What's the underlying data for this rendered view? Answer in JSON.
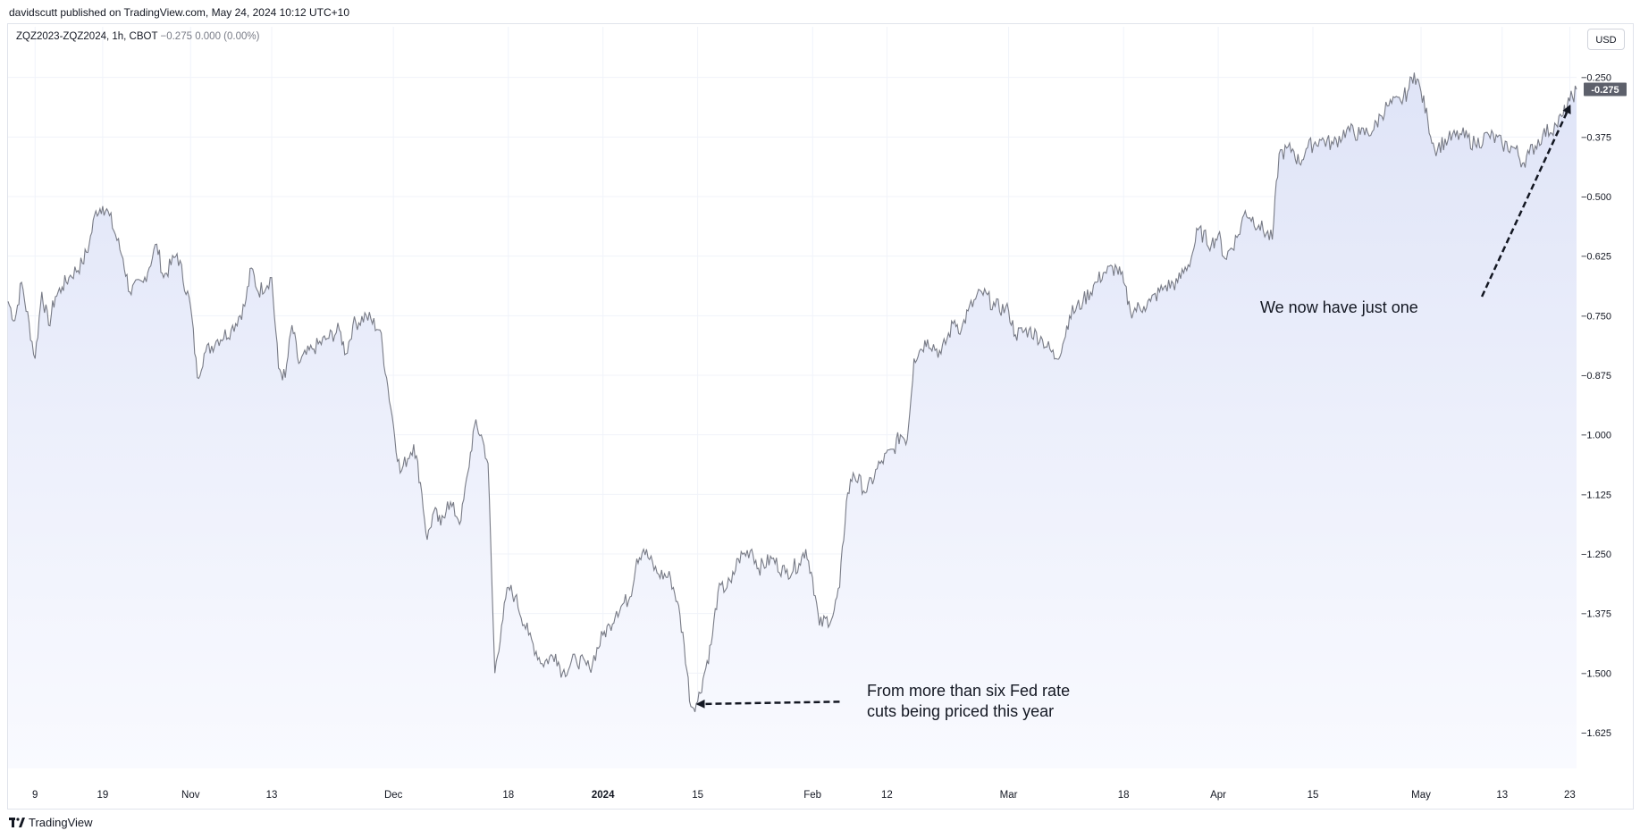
{
  "published_line": "davidscutt published on TradingView.com, May 24, 2024 10:12 UTC+10",
  "legend": {
    "symbol": "ZQZ2023-ZQZ2024, 1h, CBOT",
    "values": "−0.275  0.000 (0.00%)"
  },
  "currency_button": "USD",
  "footer_brand": "TradingView",
  "colors": {
    "line": "#787b86",
    "area_top": "#dfe4f7",
    "area_bottom": "#f9faff",
    "last_price_badge": "#5d606b",
    "grid": "#f0f3fa"
  },
  "chart_data": {
    "type": "area",
    "title": "",
    "xlabel": "",
    "ylabel": "",
    "currency": "USD",
    "last_price_label": "-0.275",
    "ylim": [
      -1.7,
      -0.2
    ],
    "xlim": [
      "2023-10-05",
      "2024-05-24"
    ],
    "y_ticks": [
      "-0.250",
      "-0.375",
      "-0.500",
      "-0.625",
      "-0.750",
      "-0.875",
      "-1.000",
      "-1.125",
      "-1.250",
      "-1.375",
      "-1.500",
      "-1.625"
    ],
    "x_ticks": [
      {
        "label": "9",
        "date": "2023-10-09",
        "bold": false
      },
      {
        "label": "19",
        "date": "2023-10-19",
        "bold": false
      },
      {
        "label": "Nov",
        "date": "2023-11-01",
        "bold": false
      },
      {
        "label": "13",
        "date": "2023-11-13",
        "bold": false
      },
      {
        "label": "Dec",
        "date": "2023-12-01",
        "bold": false
      },
      {
        "label": "18",
        "date": "2023-12-18",
        "bold": false
      },
      {
        "label": "2024",
        "date": "2024-01-01",
        "bold": true
      },
      {
        "label": "15",
        "date": "2024-01-15",
        "bold": false
      },
      {
        "label": "Feb",
        "date": "2024-02-01",
        "bold": false
      },
      {
        "label": "12",
        "date": "2024-02-12",
        "bold": false
      },
      {
        "label": "Mar",
        "date": "2024-03-01",
        "bold": false
      },
      {
        "label": "18",
        "date": "2024-03-18",
        "bold": false
      },
      {
        "label": "Apr",
        "date": "2024-04-01",
        "bold": false
      },
      {
        "label": "15",
        "date": "2024-04-15",
        "bold": false
      },
      {
        "label": "May",
        "date": "2024-05-01",
        "bold": false
      },
      {
        "label": "13",
        "date": "2024-05-13",
        "bold": false
      },
      {
        "label": "23",
        "date": "2024-05-23",
        "bold": false
      }
    ],
    "series": [
      {
        "points": [
          [
            "2023-10-05",
            -0.72
          ],
          [
            "2023-10-06",
            -0.76
          ],
          [
            "2023-10-07",
            -0.68
          ],
          [
            "2023-10-09",
            -0.84
          ],
          [
            "2023-10-10",
            -0.7
          ],
          [
            "2023-10-11",
            -0.77
          ],
          [
            "2023-10-12",
            -0.71
          ],
          [
            "2023-10-13",
            -0.69
          ],
          [
            "2023-10-14",
            -0.67
          ],
          [
            "2023-10-16",
            -0.64
          ],
          [
            "2023-10-17",
            -0.6
          ],
          [
            "2023-10-18",
            -0.53
          ],
          [
            "2023-10-19",
            -0.52
          ],
          [
            "2023-10-20",
            -0.54
          ],
          [
            "2023-10-22",
            -0.63
          ],
          [
            "2023-10-23",
            -0.7
          ],
          [
            "2023-10-25",
            -0.68
          ],
          [
            "2023-10-27",
            -0.6
          ],
          [
            "2023-10-28",
            -0.67
          ],
          [
            "2023-10-30",
            -0.62
          ],
          [
            "2023-11-01",
            -0.73
          ],
          [
            "2023-11-02",
            -0.88
          ],
          [
            "2023-11-03",
            -0.83
          ],
          [
            "2023-11-05",
            -0.8
          ],
          [
            "2023-11-07",
            -0.78
          ],
          [
            "2023-11-09",
            -0.73
          ],
          [
            "2023-11-10",
            -0.65
          ],
          [
            "2023-11-11",
            -0.7
          ],
          [
            "2023-11-13",
            -0.67
          ],
          [
            "2023-11-14",
            -0.86
          ],
          [
            "2023-11-15",
            -0.88
          ],
          [
            "2023-11-16",
            -0.77
          ],
          [
            "2023-11-17",
            -0.85
          ],
          [
            "2023-11-19",
            -0.82
          ],
          [
            "2023-11-21",
            -0.8
          ],
          [
            "2023-11-23",
            -0.78
          ],
          [
            "2023-11-24",
            -0.83
          ],
          [
            "2023-11-25",
            -0.77
          ],
          [
            "2023-11-27",
            -0.75
          ],
          [
            "2023-11-29",
            -0.78
          ],
          [
            "2023-11-30",
            -0.88
          ],
          [
            "2023-12-01",
            -0.98
          ],
          [
            "2023-12-02",
            -1.08
          ],
          [
            "2023-12-04",
            -1.02
          ],
          [
            "2023-12-05",
            -1.1
          ],
          [
            "2023-12-06",
            -1.22
          ],
          [
            "2023-12-07",
            -1.16
          ],
          [
            "2023-12-08",
            -1.19
          ],
          [
            "2023-12-09",
            -1.14
          ],
          [
            "2023-12-11",
            -1.18
          ],
          [
            "2023-12-12",
            -1.08
          ],
          [
            "2023-12-13",
            -0.98
          ],
          [
            "2023-12-14",
            -1.0
          ],
          [
            "2023-12-15",
            -1.06
          ],
          [
            "2023-12-16",
            -1.5
          ],
          [
            "2023-12-17",
            -1.4
          ],
          [
            "2023-12-18",
            -1.32
          ],
          [
            "2023-12-19",
            -1.34
          ],
          [
            "2023-12-21",
            -1.42
          ],
          [
            "2023-12-23",
            -1.48
          ],
          [
            "2023-12-25",
            -1.46
          ],
          [
            "2023-12-26",
            -1.5
          ],
          [
            "2023-12-28",
            -1.47
          ],
          [
            "2023-12-30",
            -1.49
          ],
          [
            "2024-01-01",
            -1.42
          ],
          [
            "2024-01-02",
            -1.4
          ],
          [
            "2024-01-03",
            -1.37
          ],
          [
            "2024-01-05",
            -1.34
          ],
          [
            "2024-01-06",
            -1.26
          ],
          [
            "2024-01-07",
            -1.24
          ],
          [
            "2024-01-09",
            -1.29
          ],
          [
            "2024-01-11",
            -1.3
          ],
          [
            "2024-01-12",
            -1.35
          ],
          [
            "2024-01-13",
            -1.44
          ],
          [
            "2024-01-14",
            -1.57
          ],
          [
            "2024-01-15",
            -1.56
          ],
          [
            "2024-01-16",
            -1.5
          ],
          [
            "2024-01-17",
            -1.44
          ],
          [
            "2024-01-18",
            -1.33
          ],
          [
            "2024-01-20",
            -1.31
          ],
          [
            "2024-01-21",
            -1.26
          ],
          [
            "2024-01-23",
            -1.24
          ],
          [
            "2024-01-24",
            -1.28
          ],
          [
            "2024-01-26",
            -1.26
          ],
          [
            "2024-01-28",
            -1.29
          ],
          [
            "2024-01-30",
            -1.27
          ],
          [
            "2024-01-31",
            -1.24
          ],
          [
            "2024-02-01",
            -1.3
          ],
          [
            "2024-02-02",
            -1.4
          ],
          [
            "2024-02-04",
            -1.38
          ],
          [
            "2024-02-05",
            -1.32
          ],
          [
            "2024-02-06",
            -1.14
          ],
          [
            "2024-02-07",
            -1.08
          ],
          [
            "2024-02-09",
            -1.12
          ],
          [
            "2024-02-11",
            -1.06
          ],
          [
            "2024-02-13",
            -1.03
          ],
          [
            "2024-02-14",
            -1.0
          ],
          [
            "2024-02-15",
            -1.01
          ],
          [
            "2024-02-16",
            -0.84
          ],
          [
            "2024-02-17",
            -0.82
          ],
          [
            "2024-02-18",
            -0.8
          ],
          [
            "2024-02-20",
            -0.83
          ],
          [
            "2024-02-22",
            -0.76
          ],
          [
            "2024-02-23",
            -0.78
          ],
          [
            "2024-02-24",
            -0.74
          ],
          [
            "2024-02-26",
            -0.7
          ],
          [
            "2024-02-28",
            -0.73
          ],
          [
            "2024-03-01",
            -0.74
          ],
          [
            "2024-03-02",
            -0.79
          ],
          [
            "2024-03-04",
            -0.78
          ],
          [
            "2024-03-06",
            -0.8
          ],
          [
            "2024-03-08",
            -0.84
          ],
          [
            "2024-03-09",
            -0.81
          ],
          [
            "2024-03-10",
            -0.75
          ],
          [
            "2024-03-12",
            -0.72
          ],
          [
            "2024-03-14",
            -0.68
          ],
          [
            "2024-03-15",
            -0.66
          ],
          [
            "2024-03-17",
            -0.65
          ],
          [
            "2024-03-18",
            -0.68
          ],
          [
            "2024-03-19",
            -0.74
          ],
          [
            "2024-03-21",
            -0.73
          ],
          [
            "2024-03-22",
            -0.72
          ],
          [
            "2024-03-24",
            -0.69
          ],
          [
            "2024-03-26",
            -0.68
          ],
          [
            "2024-03-28",
            -0.63
          ],
          [
            "2024-03-29",
            -0.57
          ],
          [
            "2024-03-31",
            -0.6
          ],
          [
            "2024-04-01",
            -0.58
          ],
          [
            "2024-04-02",
            -0.63
          ],
          [
            "2024-04-04",
            -0.58
          ],
          [
            "2024-04-05",
            -0.53
          ],
          [
            "2024-04-07",
            -0.56
          ],
          [
            "2024-04-09",
            -0.59
          ],
          [
            "2024-04-10",
            -0.41
          ],
          [
            "2024-04-12",
            -0.4
          ],
          [
            "2024-04-13",
            -0.43
          ],
          [
            "2024-04-14",
            -0.4
          ],
          [
            "2024-04-16",
            -0.38
          ],
          [
            "2024-04-18",
            -0.39
          ],
          [
            "2024-04-20",
            -0.36
          ],
          [
            "2024-04-22",
            -0.37
          ],
          [
            "2024-04-24",
            -0.36
          ],
          [
            "2024-04-25",
            -0.33
          ],
          [
            "2024-04-26",
            -0.31
          ],
          [
            "2024-04-28",
            -0.3
          ],
          [
            "2024-04-29",
            -0.28
          ],
          [
            "2024-04-30",
            -0.24
          ],
          [
            "2024-05-01",
            -0.28
          ],
          [
            "2024-05-02",
            -0.34
          ],
          [
            "2024-05-03",
            -0.4
          ],
          [
            "2024-05-05",
            -0.38
          ],
          [
            "2024-05-07",
            -0.37
          ],
          [
            "2024-05-09",
            -0.39
          ],
          [
            "2024-05-11",
            -0.37
          ],
          [
            "2024-05-13",
            -0.39
          ],
          [
            "2024-05-15",
            -0.4
          ],
          [
            "2024-05-16",
            -0.43
          ],
          [
            "2024-05-17",
            -0.41
          ],
          [
            "2024-05-19",
            -0.37
          ],
          [
            "2024-05-21",
            -0.35
          ],
          [
            "2024-05-22",
            -0.33
          ],
          [
            "2024-05-23",
            -0.3
          ],
          [
            "2024-05-24",
            -0.275
          ]
        ]
      }
    ],
    "annotations": [
      {
        "lines": [
          "From more than six Fed rate",
          "cuts being priced this year"
        ],
        "arrow_from": [
          "2024-02-05",
          -1.56
        ],
        "arrow_to": [
          "2024-01-15",
          -1.565
        ]
      },
      {
        "lines": [
          "We now have just one"
        ],
        "arrow_from": [
          "2024-05-10",
          -0.71
        ],
        "arrow_to": [
          "2024-05-23",
          -0.31
        ]
      }
    ]
  }
}
